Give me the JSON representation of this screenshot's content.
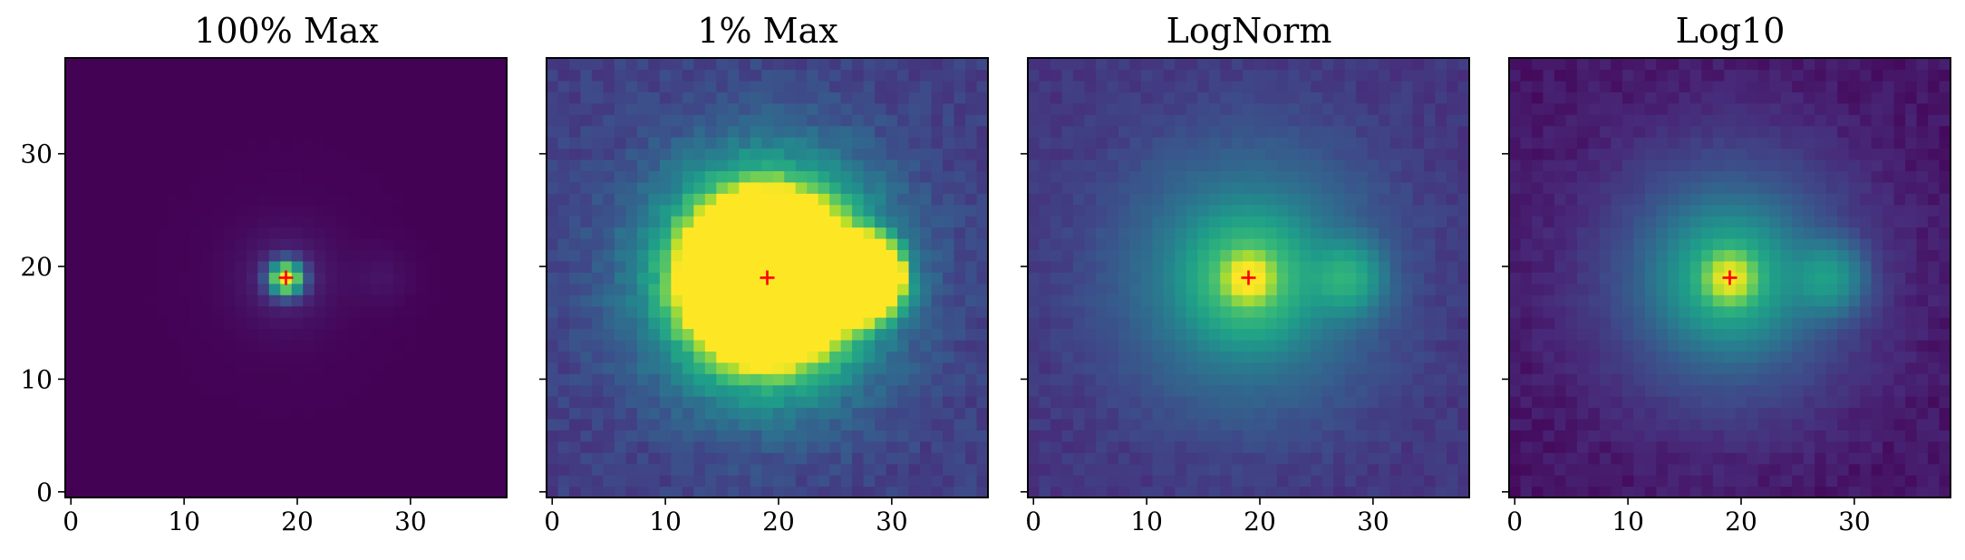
{
  "chart_data": [
    {
      "type": "heatmap",
      "title": "100% Max",
      "xticks": [
        0,
        10,
        20,
        30
      ],
      "yticks": [
        0,
        10,
        20,
        30
      ],
      "xlim": [
        -0.5,
        38.5
      ],
      "ylim": [
        -0.5,
        38.5
      ],
      "marker": {
        "symbol": "+",
        "x": 19,
        "y": 19,
        "color": "#ff0000"
      },
      "colormap": "viridis",
      "stretch": "linear, 100% of max",
      "sources": [
        {
          "x": 19,
          "y": 19,
          "peak": 1.0
        },
        {
          "x": 27.5,
          "y": 19,
          "peak": 0.045
        }
      ],
      "show_yticklabels": true
    },
    {
      "type": "heatmap",
      "title": "1% Max",
      "xticks": [
        0,
        10,
        20,
        30
      ],
      "yticks": [
        0,
        10,
        20,
        30
      ],
      "xlim": [
        -0.5,
        38.5
      ],
      "ylim": [
        -0.5,
        38.5
      ],
      "marker": {
        "symbol": "+",
        "x": 19,
        "y": 19,
        "color": "#ff0000"
      },
      "colormap": "viridis",
      "stretch": "linear, 1% of max",
      "sources": [
        {
          "x": 19,
          "y": 19,
          "peak": 1.0
        },
        {
          "x": 27.5,
          "y": 19,
          "peak": 0.045
        }
      ],
      "show_yticklabels": false
    },
    {
      "type": "heatmap",
      "title": "LogNorm",
      "xticks": [
        0,
        10,
        20,
        30
      ],
      "yticks": [
        0,
        10,
        20,
        30
      ],
      "xlim": [
        -0.5,
        38.5
      ],
      "ylim": [
        -0.5,
        38.5
      ],
      "marker": {
        "symbol": "+",
        "x": 19,
        "y": 19,
        "color": "#ff0000"
      },
      "colormap": "viridis",
      "stretch": "log",
      "sources": [
        {
          "x": 19,
          "y": 19,
          "peak": 1.0
        },
        {
          "x": 27.5,
          "y": 19,
          "peak": 0.045
        }
      ],
      "show_yticklabels": false
    },
    {
      "type": "heatmap",
      "title": "Log10",
      "xticks": [
        0,
        10,
        20,
        30
      ],
      "yticks": [
        0,
        10,
        20,
        30
      ],
      "xlim": [
        -0.5,
        38.5
      ],
      "ylim": [
        -0.5,
        38.5
      ],
      "marker": {
        "symbol": "+",
        "x": 19,
        "y": 19,
        "color": "#ff0000"
      },
      "colormap": "viridis",
      "stretch": "log10",
      "sources": [
        {
          "x": 19,
          "y": 19,
          "peak": 1.0
        },
        {
          "x": 27.5,
          "y": 19,
          "peak": 0.045
        }
      ],
      "show_yticklabels": false
    }
  ]
}
